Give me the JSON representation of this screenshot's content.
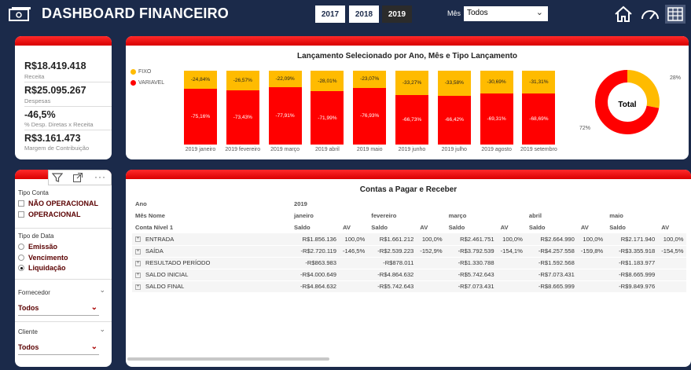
{
  "header": {
    "title": "DASHBOARD FINANCEIRO",
    "years": [
      "2017",
      "2018",
      "2019"
    ],
    "selected_year": "2019",
    "mes_label": "Mês",
    "mes_value": "Todos",
    "nav_icons": [
      "home-icon",
      "gauge-icon",
      "table-icon"
    ]
  },
  "kpis": [
    {
      "value": "R$18.419.418",
      "label": "Receita"
    },
    {
      "value": "R$25.095.267",
      "label": "Despesas"
    },
    {
      "value": "-46,5%",
      "label": "% Desp. Diretas x Receita"
    },
    {
      "value": "R$3.161.473",
      "label": "Margem de Contribuição"
    }
  ],
  "chart_data": [
    {
      "type": "bar",
      "title": "Lançamento Selecionado por Ano, Mês e Tipo Lançamento",
      "categories": [
        "2019 janeiro",
        "2019 fevereiro",
        "2019 março",
        "2019 abril",
        "2019 maio",
        "2019 junho",
        "2019 julho",
        "2019 agosto",
        "2019 setembro"
      ],
      "series": [
        {
          "name": "FIXO",
          "color": "#ffbb00",
          "values": [
            24.84,
            26.57,
            22.09,
            28.01,
            23.07,
            33.27,
            33.58,
            30.69,
            31.31
          ],
          "labels": [
            "-24,84%",
            "-26,57%",
            "-22,09%",
            "-28,01%",
            "-23,07%",
            "-33,27%",
            "-33,58%",
            "-30,69%",
            "-31,31%"
          ]
        },
        {
          "name": "VARIAVEL",
          "color": "#ff0000",
          "values": [
            75.16,
            73.43,
            77.91,
            71.99,
            76.93,
            66.73,
            66.42,
            69.31,
            68.69
          ],
          "labels": [
            "-75,16%",
            "-73,43%",
            "-77,91%",
            "-71,99%",
            "-76,93%",
            "-66,73%",
            "-66,42%",
            "-69,31%",
            "-68,69%"
          ]
        }
      ],
      "stacked": true,
      "legend": "top-left"
    },
    {
      "type": "pie",
      "center_label": "Total",
      "slices": [
        {
          "name": "FIXO",
          "value": 28,
          "label": "28%",
          "color": "#ffbb00"
        },
        {
          "name": "VARIAVEL",
          "value": 72,
          "label": "72%",
          "color": "#ff0000"
        }
      ]
    }
  ],
  "filters": {
    "tipo_conta": {
      "label": "Tipo Conta",
      "options": [
        "NÃO OPERACIONAL",
        "OPERACIONAL"
      ]
    },
    "tipo_data": {
      "label": "Tipo de Data",
      "options": [
        "Emissão",
        "Vencimento",
        "Liquidação"
      ],
      "selected": "Liquidação"
    },
    "fornecedor": {
      "label": "Fornecedor",
      "value": "Todos"
    },
    "cliente": {
      "label": "Cliente",
      "value": "Todos"
    }
  },
  "matrix": {
    "title": "Contas a Pagar e Receber",
    "row_header_ano": "Ano",
    "year": "2019",
    "row_header_mes": "Mês Nome",
    "months": [
      "janeiro",
      "fevereiro",
      "março",
      "abril",
      "maio"
    ],
    "row_header_conta": "Conta Nível 1",
    "col_saldo": "Saldo",
    "col_av": "AV",
    "rows": [
      {
        "name": "ENTRADA",
        "cells": [
          "R$1.856.136",
          "100,0%",
          "R$1.661.212",
          "100,0%",
          "R$2.461.751",
          "100,0%",
          "R$2.664.990",
          "100,0%",
          "R$2.171.940",
          "100,0%"
        ]
      },
      {
        "name": "SAÍDA",
        "cells": [
          "-R$2.720.119",
          "-146,5%",
          "-R$2.539.223",
          "-152,9%",
          "-R$3.792.539",
          "-154,1%",
          "-R$4.257.558",
          "-159,8%",
          "-R$3.355.918",
          "-154,5%"
        ]
      },
      {
        "name": "RESULTADO PERÍODO",
        "cells": [
          "-R$863.983",
          "",
          "-R$878.011",
          "",
          "-R$1.330.788",
          "",
          "-R$1.592.568",
          "",
          "-R$1.183.977",
          ""
        ]
      },
      {
        "name": "SALDO INICIAL",
        "cells": [
          "-R$4.000.649",
          "",
          "-R$4.864.632",
          "",
          "-R$5.742.643",
          "",
          "-R$7.073.431",
          "",
          "-R$8.665.999",
          ""
        ]
      },
      {
        "name": "SALDO FINAL",
        "cells": [
          "-R$4.864.632",
          "",
          "-R$5.742.643",
          "",
          "-R$7.073.431",
          "",
          "-R$8.665.999",
          "",
          "-R$9.849.976",
          ""
        ]
      }
    ]
  }
}
